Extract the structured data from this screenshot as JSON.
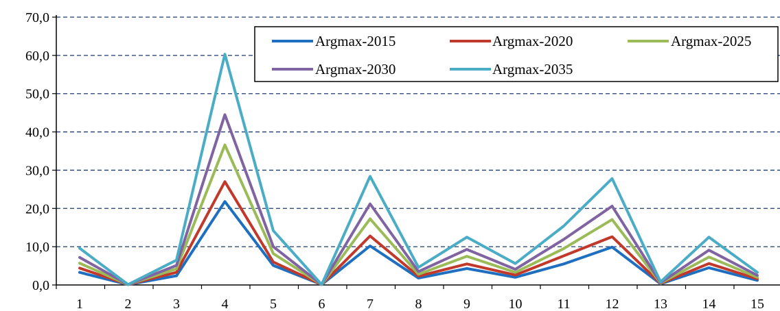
{
  "chart_data": {
    "type": "line",
    "title": "",
    "xlabel": "",
    "ylabel": "",
    "categories": [
      "1",
      "2",
      "3",
      "4",
      "5",
      "6",
      "7",
      "8",
      "9",
      "10",
      "11",
      "12",
      "13",
      "14",
      "15"
    ],
    "ylim": [
      0,
      70
    ],
    "yticks": [
      "0,0",
      "10,0",
      "20,0",
      "30,0",
      "40,0",
      "50,0",
      "60,0",
      "70,0"
    ],
    "grid": true,
    "legend_position": "top-right",
    "series": [
      {
        "name": "Argmax-2015",
        "color": "#1f6fc0",
        "values": [
          3.3,
          0.1,
          2.4,
          21.8,
          5.1,
          0.1,
          10.2,
          1.8,
          4.3,
          2.0,
          5.5,
          9.9,
          0.3,
          4.5,
          1.2
        ]
      },
      {
        "name": "Argmax-2020",
        "color": "#c0392b",
        "values": [
          4.4,
          0.1,
          3.3,
          27.0,
          6.0,
          0.1,
          12.8,
          2.3,
          5.5,
          2.6,
          7.6,
          12.6,
          0.4,
          5.6,
          1.6
        ]
      },
      {
        "name": "Argmax-2025",
        "color": "#9bbb59",
        "values": [
          5.7,
          0.1,
          4.2,
          36.6,
          8.2,
          0.1,
          17.3,
          2.8,
          7.5,
          3.3,
          9.5,
          17.1,
          0.5,
          7.3,
          2.0
        ]
      },
      {
        "name": "Argmax-2030",
        "color": "#8064a2",
        "values": [
          7.2,
          0.1,
          5.1,
          44.5,
          10.0,
          0.1,
          21.2,
          3.5,
          9.3,
          4.1,
          11.9,
          20.6,
          0.6,
          9.1,
          2.5
        ]
      },
      {
        "name": "Argmax-2035",
        "color": "#4bacc6",
        "values": [
          9.6,
          0.1,
          6.5,
          60.3,
          14.2,
          0.1,
          28.4,
          4.6,
          12.5,
          5.6,
          15.4,
          27.8,
          0.8,
          12.5,
          3.3
        ]
      }
    ]
  }
}
